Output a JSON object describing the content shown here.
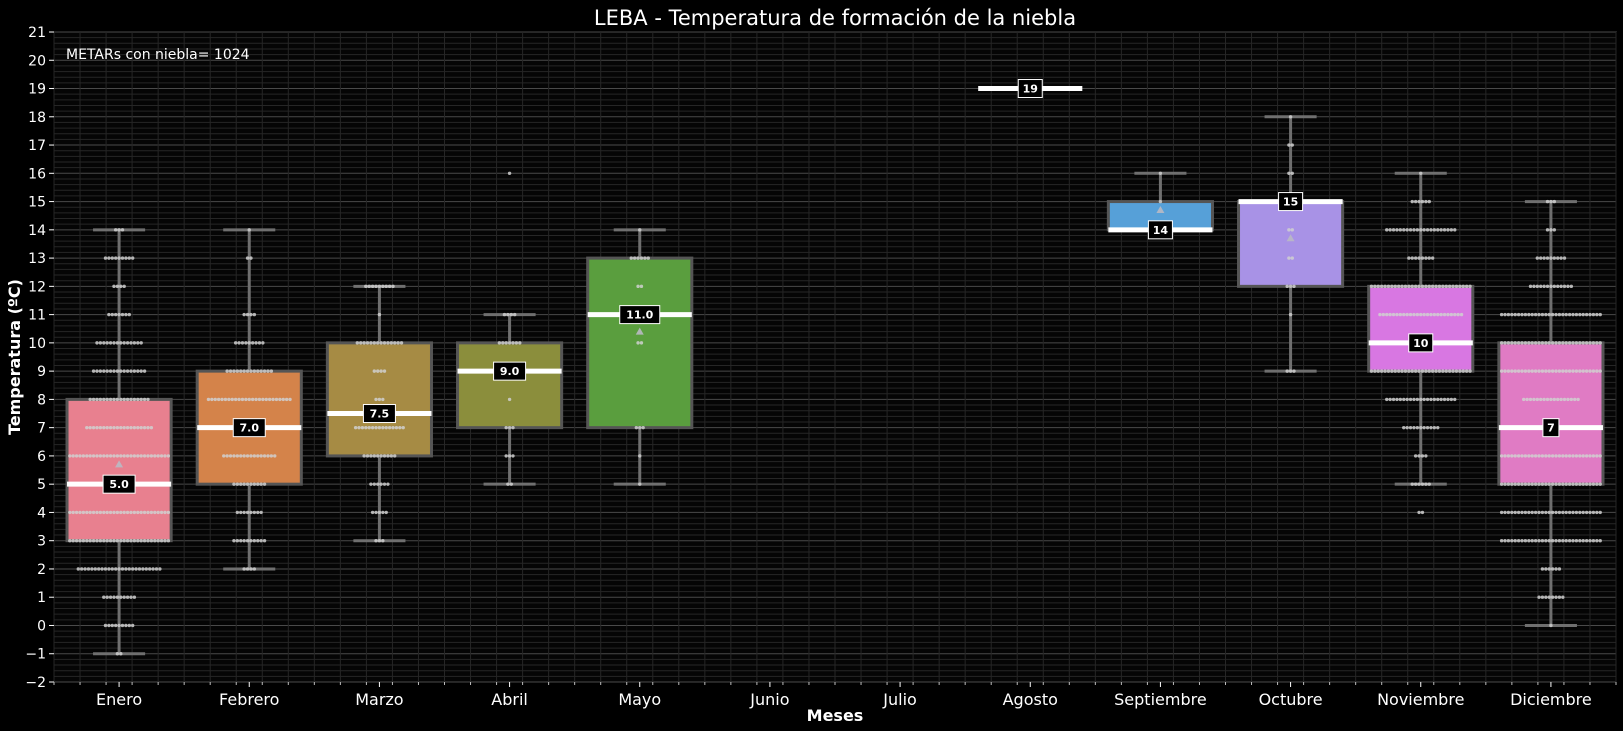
{
  "chart_data": {
    "type": "box",
    "title": "LEBA - Temperatura de formación de la niebla",
    "annotation": "METARs con niebla= 1024",
    "xlabel": "Meses",
    "ylabel": "Temperatura (ºC)",
    "ylim": [
      -2,
      21
    ],
    "yticks": [
      -2,
      -1,
      0,
      1,
      2,
      3,
      4,
      5,
      6,
      7,
      8,
      9,
      10,
      11,
      12,
      13,
      14,
      15,
      16,
      17,
      18,
      19,
      20,
      21
    ],
    "grid": true,
    "categories": [
      "Enero",
      "Febrero",
      "Marzo",
      "Abril",
      "Mayo",
      "Junio",
      "Julio",
      "Agosto",
      "Septiembre",
      "Octubre",
      "Noviembre",
      "Diciembre"
    ],
    "boxes": [
      {
        "month": "Enero",
        "color": "#e8808f",
        "q1": 3,
        "median": 5.0,
        "q3": 8,
        "whisker_low": -1,
        "whisker_high": 14,
        "mean": 5.7,
        "label": "5.0"
      },
      {
        "month": "Febrero",
        "color": "#d4834a",
        "q1": 5,
        "median": 7.0,
        "q3": 9,
        "whisker_low": 2,
        "whisker_high": 14,
        "mean": null,
        "label": "7.0"
      },
      {
        "month": "Marzo",
        "color": "#a68b44",
        "q1": 6,
        "median": 7.5,
        "q3": 10,
        "whisker_low": 3,
        "whisker_high": 12,
        "mean": null,
        "label": "7.5"
      },
      {
        "month": "Abril",
        "color": "#8b8e3c",
        "q1": 7,
        "median": 9.0,
        "q3": 10,
        "whisker_low": 5,
        "whisker_high": 11,
        "mean": null,
        "label": "9.0"
      },
      {
        "month": "Mayo",
        "color": "#5a9e3e",
        "q1": 7,
        "median": 11.0,
        "q3": 13,
        "whisker_low": 5,
        "whisker_high": 14,
        "mean": 10.4,
        "label": "11.0"
      },
      {
        "month": "Junio",
        "color": null,
        "q1": null,
        "median": null,
        "q3": null,
        "whisker_low": null,
        "whisker_high": null,
        "mean": null,
        "label": null
      },
      {
        "month": "Julio",
        "color": null,
        "q1": null,
        "median": null,
        "q3": null,
        "whisker_low": null,
        "whisker_high": null,
        "mean": null,
        "label": null
      },
      {
        "month": "Agosto",
        "color": "#ffffff",
        "q1": 19,
        "median": 19,
        "q3": 19,
        "whisker_low": 19,
        "whisker_high": 19,
        "mean": null,
        "label": "19"
      },
      {
        "month": "Septiembre",
        "color": "#56a0d8",
        "q1": 14,
        "median": 14,
        "q3": 15,
        "whisker_low": 14,
        "whisker_high": 16,
        "mean": 14.7,
        "label": "14"
      },
      {
        "month": "Octubre",
        "color": "#a892e6",
        "q1": 12,
        "median": 15,
        "q3": 15,
        "whisker_low": 9,
        "whisker_high": 18,
        "mean": 13.7,
        "label": "15"
      },
      {
        "month": "Noviembre",
        "color": "#d877e2",
        "q1": 9,
        "median": 10,
        "q3": 12,
        "whisker_low": 5,
        "whisker_high": 16,
        "mean": null,
        "label": "10"
      },
      {
        "month": "Diciembre",
        "color": "#e07bc4",
        "q1": 5,
        "median": 7,
        "q3": 10,
        "whisker_low": 0,
        "whisker_high": 15,
        "mean": null,
        "label": "7"
      }
    ],
    "swarm": [
      {
        "month": "Enero",
        "counts": [
          [
            -1,
            2
          ],
          [
            0,
            9
          ],
          [
            1,
            10
          ],
          [
            2,
            25
          ],
          [
            3,
            30
          ],
          [
            4,
            30
          ],
          [
            5,
            30
          ],
          [
            6,
            30
          ],
          [
            7,
            20
          ],
          [
            8,
            18
          ],
          [
            9,
            16
          ],
          [
            10,
            14
          ],
          [
            11,
            7
          ],
          [
            12,
            4
          ],
          [
            13,
            9
          ],
          [
            14,
            3
          ]
        ]
      },
      {
        "month": "Febrero",
        "counts": [
          [
            2,
            4
          ],
          [
            3,
            10
          ],
          [
            4,
            8
          ],
          [
            5,
            10
          ],
          [
            6,
            16
          ],
          [
            7,
            20
          ],
          [
            8,
            25
          ],
          [
            9,
            14
          ],
          [
            10,
            9
          ],
          [
            11,
            4
          ],
          [
            13,
            2
          ],
          [
            14,
            1
          ]
        ]
      },
      {
        "month": "Marzo",
        "counts": [
          [
            3,
            3
          ],
          [
            4,
            5
          ],
          [
            5,
            6
          ],
          [
            6,
            10
          ],
          [
            7,
            15
          ],
          [
            8,
            3
          ],
          [
            9,
            4
          ],
          [
            10,
            14
          ],
          [
            11,
            1
          ],
          [
            12,
            9
          ]
        ]
      },
      {
        "month": "Abril",
        "counts": [
          [
            5,
            2
          ],
          [
            6,
            3
          ],
          [
            7,
            3
          ],
          [
            8,
            1
          ],
          [
            9,
            2
          ],
          [
            10,
            7
          ],
          [
            11,
            4
          ],
          [
            16,
            1
          ]
        ]
      },
      {
        "month": "Mayo",
        "counts": [
          [
            5,
            1
          ],
          [
            6,
            1
          ],
          [
            7,
            3
          ],
          [
            10,
            2
          ],
          [
            11,
            3
          ],
          [
            12,
            2
          ],
          [
            13,
            6
          ],
          [
            14,
            1
          ]
        ]
      },
      {
        "month": "Septiembre",
        "counts": [
          [
            14,
            3
          ],
          [
            15,
            1
          ],
          [
            16,
            1
          ]
        ]
      },
      {
        "month": "Octubre",
        "counts": [
          [
            9,
            3
          ],
          [
            11,
            1
          ],
          [
            12,
            3
          ],
          [
            13,
            2
          ],
          [
            14,
            2
          ],
          [
            15,
            2
          ],
          [
            16,
            2
          ],
          [
            17,
            2
          ],
          [
            18,
            1
          ]
        ]
      },
      {
        "month": "Noviembre",
        "counts": [
          [
            4,
            2
          ],
          [
            5,
            6
          ],
          [
            6,
            4
          ],
          [
            7,
            11
          ],
          [
            8,
            21
          ],
          [
            9,
            30
          ],
          [
            10,
            17
          ],
          [
            11,
            25
          ],
          [
            12,
            30
          ],
          [
            13,
            8
          ],
          [
            14,
            21
          ],
          [
            15,
            6
          ],
          [
            16,
            1
          ]
        ]
      },
      {
        "month": "Diciembre",
        "counts": [
          [
            0,
            1
          ],
          [
            1,
            8
          ],
          [
            2,
            6
          ],
          [
            3,
            30
          ],
          [
            4,
            30
          ],
          [
            5,
            30
          ],
          [
            6,
            30
          ],
          [
            7,
            20
          ],
          [
            8,
            17
          ],
          [
            9,
            30
          ],
          [
            10,
            30
          ],
          [
            11,
            30
          ],
          [
            12,
            13
          ],
          [
            13,
            9
          ],
          [
            14,
            3
          ],
          [
            15,
            3
          ]
        ]
      }
    ],
    "colors": {
      "background": "#000000",
      "axes_bg": "#050505",
      "grid": "#3a3a3a",
      "text": "#ffffff"
    }
  }
}
